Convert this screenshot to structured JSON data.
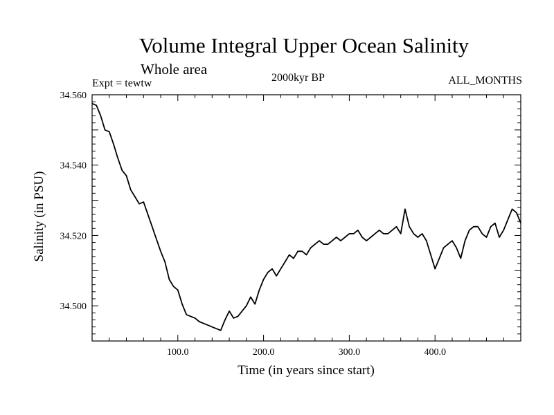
{
  "chart_data": {
    "type": "line",
    "title": "Volume Integral Upper Ocean Salinity",
    "subtitle": "Whole area",
    "experiment": "Expt = tewtw",
    "epoch": "2000kyr BP",
    "season": "ALL_MONTHS",
    "xlabel": "Time (in years since start)",
    "ylabel": "Salinity (in PSU)",
    "xlim": [
      0,
      500
    ],
    "ylim": [
      34.49,
      34.56
    ],
    "x_ticks": [
      {
        "value": 100,
        "label": "100.0"
      },
      {
        "value": 200,
        "label": "200.0"
      },
      {
        "value": 300,
        "label": "300.0"
      },
      {
        "value": 400,
        "label": "400.0"
      }
    ],
    "y_ticks": [
      {
        "value": 34.5,
        "label": "34.500"
      },
      {
        "value": 34.52,
        "label": "34.520"
      },
      {
        "value": 34.54,
        "label": "34.540"
      },
      {
        "value": 34.56,
        "label": "34.560"
      }
    ],
    "series": [
      {
        "name": "Volume integral upper ocean salinity",
        "x": [
          0,
          5,
          10,
          15,
          20,
          25,
          30,
          35,
          40,
          45,
          50,
          55,
          60,
          65,
          70,
          75,
          80,
          85,
          90,
          95,
          100,
          105,
          110,
          115,
          120,
          125,
          130,
          135,
          140,
          145,
          150,
          155,
          160,
          165,
          170,
          175,
          180,
          185,
          190,
          195,
          200,
          205,
          210,
          215,
          220,
          225,
          230,
          235,
          240,
          245,
          250,
          255,
          260,
          265,
          270,
          275,
          280,
          285,
          290,
          295,
          300,
          305,
          310,
          315,
          320,
          325,
          330,
          335,
          340,
          345,
          350,
          355,
          360,
          365,
          370,
          375,
          380,
          385,
          390,
          395,
          400,
          405,
          410,
          415,
          420,
          425,
          430,
          435,
          440,
          445,
          450,
          455,
          460,
          465,
          470,
          475,
          480,
          485,
          490,
          495,
          500
        ],
        "values": [
          34.5575,
          34.557,
          34.554,
          34.55,
          34.5495,
          34.546,
          34.542,
          34.5385,
          34.537,
          34.533,
          34.531,
          34.529,
          34.5295,
          34.526,
          34.5225,
          34.519,
          34.5155,
          34.5125,
          34.5075,
          34.5055,
          34.5045,
          34.5005,
          34.4975,
          34.497,
          34.4965,
          34.4955,
          34.495,
          34.4945,
          34.494,
          34.4935,
          34.493,
          34.496,
          34.4985,
          34.4965,
          34.497,
          34.4985,
          34.5,
          34.5025,
          34.5005,
          34.5045,
          34.5075,
          34.5095,
          34.5105,
          34.5085,
          34.5105,
          34.5125,
          34.5145,
          34.5135,
          34.5155,
          34.5155,
          34.5145,
          34.5165,
          34.5175,
          34.5185,
          34.5175,
          34.5175,
          34.5185,
          34.5195,
          34.5185,
          34.5195,
          34.5205,
          34.5205,
          34.5215,
          34.5195,
          34.5185,
          34.5195,
          34.5205,
          34.5215,
          34.5205,
          34.5205,
          34.5215,
          34.5225,
          34.5205,
          34.5275,
          34.5225,
          34.5205,
          34.5195,
          34.5205,
          34.5185,
          34.5145,
          34.5105,
          34.5135,
          34.5165,
          34.5175,
          34.5185,
          34.5165,
          34.5135,
          34.5185,
          34.5215,
          34.5225,
          34.5225,
          34.5205,
          34.5195,
          34.5225,
          34.5235,
          34.5195,
          34.5215,
          34.5245,
          34.5275,
          34.5265,
          34.5235
        ]
      }
    ]
  }
}
